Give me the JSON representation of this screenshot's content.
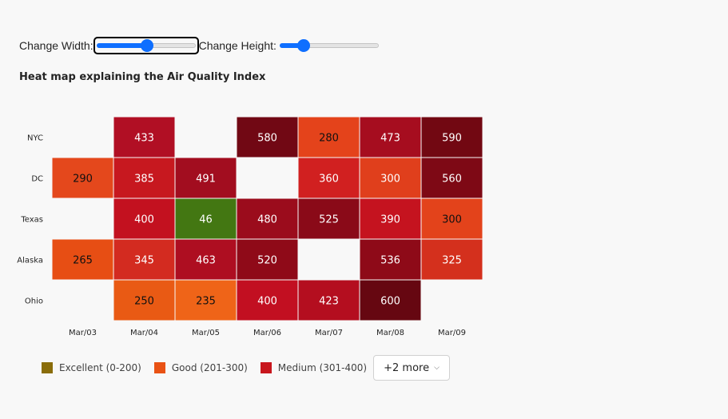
{
  "controls": {
    "width_label": "Change Width:",
    "height_label": "Change Height:",
    "width_value": 0.5,
    "height_value": 0.2
  },
  "chart_title": "Heat map explaining the Air Quality Index",
  "legend": {
    "items": [
      {
        "label": "Excellent (0-200)",
        "color": "#8a6d0a"
      },
      {
        "label": "Good (201-300)",
        "color": "#e95214"
      },
      {
        "label": "Medium (301-400)",
        "color": "#c8161d"
      }
    ],
    "more_label": "+2 more"
  },
  "chart_data": {
    "type": "heatmap",
    "title": "Heat map explaining the Air Quality Index",
    "x": [
      "Mar/03",
      "Mar/04",
      "Mar/05",
      "Mar/06",
      "Mar/07",
      "Mar/08",
      "Mar/09"
    ],
    "y": [
      "NYC",
      "DC",
      "Texas",
      "Alaska",
      "Ohio"
    ],
    "values": [
      [
        null,
        433,
        null,
        580,
        280,
        473,
        590
      ],
      [
        290,
        385,
        491,
        null,
        360,
        300,
        560
      ],
      [
        null,
        400,
        46,
        480,
        525,
        390,
        300
      ],
      [
        265,
        345,
        463,
        520,
        null,
        536,
        325
      ],
      [
        null,
        250,
        235,
        400,
        423,
        600,
        null
      ]
    ],
    "cell_colors": [
      [
        null,
        "#b10f24",
        null,
        "#710814",
        "#e4431b",
        "#a60d1f",
        "#720812"
      ],
      [
        "#e4481c",
        "#c7181f",
        "#a20d1f",
        null,
        "#d12020",
        "#e03f1c",
        "#7e0915"
      ],
      [
        null,
        "#c3111f",
        "#437712",
        "#9b0c1c",
        "#8a0a18",
        "#c5131f",
        "#e3431b"
      ],
      [
        "#e74e14",
        "#d32b20",
        "#ae0e21",
        "#8f0a18",
        null,
        "#8e0a18",
        "#d4301d"
      ],
      [
        null,
        "#e95a14",
        "#ef6418",
        "#c20f21",
        "#b40e1f",
        "#660711",
        null
      ]
    ]
  }
}
